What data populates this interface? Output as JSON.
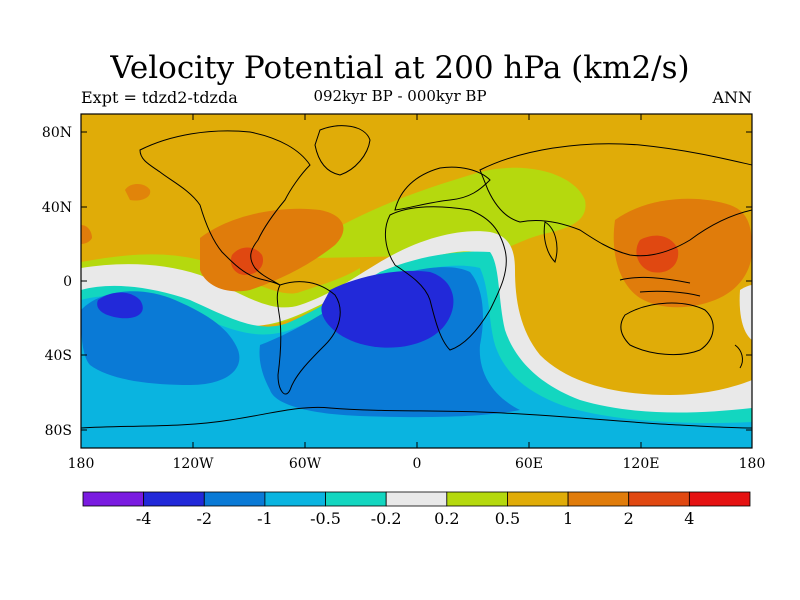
{
  "title": "Velocity Potential at 200 hPa (km2/s)",
  "subtitle_left": "Expt = tdzd2-tdzda",
  "subtitle_center": "092kyr BP - 000kyr BP",
  "subtitle_right": "ANN",
  "lat_ticks": [
    "80N",
    "40N",
    "0",
    "40S",
    "80S"
  ],
  "lon_ticks": [
    "180",
    "120W",
    "60W",
    "0",
    "60E",
    "120E",
    "180"
  ],
  "colorbar": {
    "labels": [
      "-4",
      "-2",
      "-1",
      "-0.5",
      "-0.2",
      "0.2",
      "0.5",
      "1",
      "2",
      "4"
    ],
    "colors": [
      "#7a1be0",
      "#2229d9",
      "#0a7ad6",
      "#0ab4e0",
      "#13d6c0",
      "#e9e9e9",
      "#b5d90e",
      "#e0ac08",
      "#e07c0b",
      "#e04811",
      "#e51212"
    ]
  },
  "chart_data": {
    "type": "heatmap",
    "title": "Velocity Potential at 200 hPa (km2/s)",
    "subtitle": "092kyr BP - 000kyr BP",
    "experiment": "tdzd2-tdzda",
    "season": "ANN",
    "xlim": [
      -180,
      180
    ],
    "ylim": [
      -90,
      90
    ],
    "levels": [
      -4,
      -2,
      -1,
      -0.5,
      -0.2,
      0.2,
      0.5,
      1,
      2,
      4
    ],
    "regions": [
      {
        "name": "minimum over South Atlantic / Africa",
        "lon": 0,
        "lat": -15,
        "range": "-4 to -2"
      },
      {
        "name": "minimum over central South Pacific",
        "lon": -150,
        "lat": -10,
        "range": "-4 to -2"
      },
      {
        "name": "maximum over Central America / Gulf",
        "lon": -85,
        "lat": 10,
        "range": "2 to 4"
      },
      {
        "name": "maximum over Maritime Continent",
        "lon": 130,
        "lat": 5,
        "range": "1 to 2"
      },
      {
        "name": "Northern Hemisphere mid-high latitudes",
        "lon": 0,
        "lat": 60,
        "range": "0.5 to 1"
      },
      {
        "name": "Southern Ocean",
        "lon": 0,
        "lat": -60,
        "range": "-1 to -0.5"
      }
    ]
  }
}
